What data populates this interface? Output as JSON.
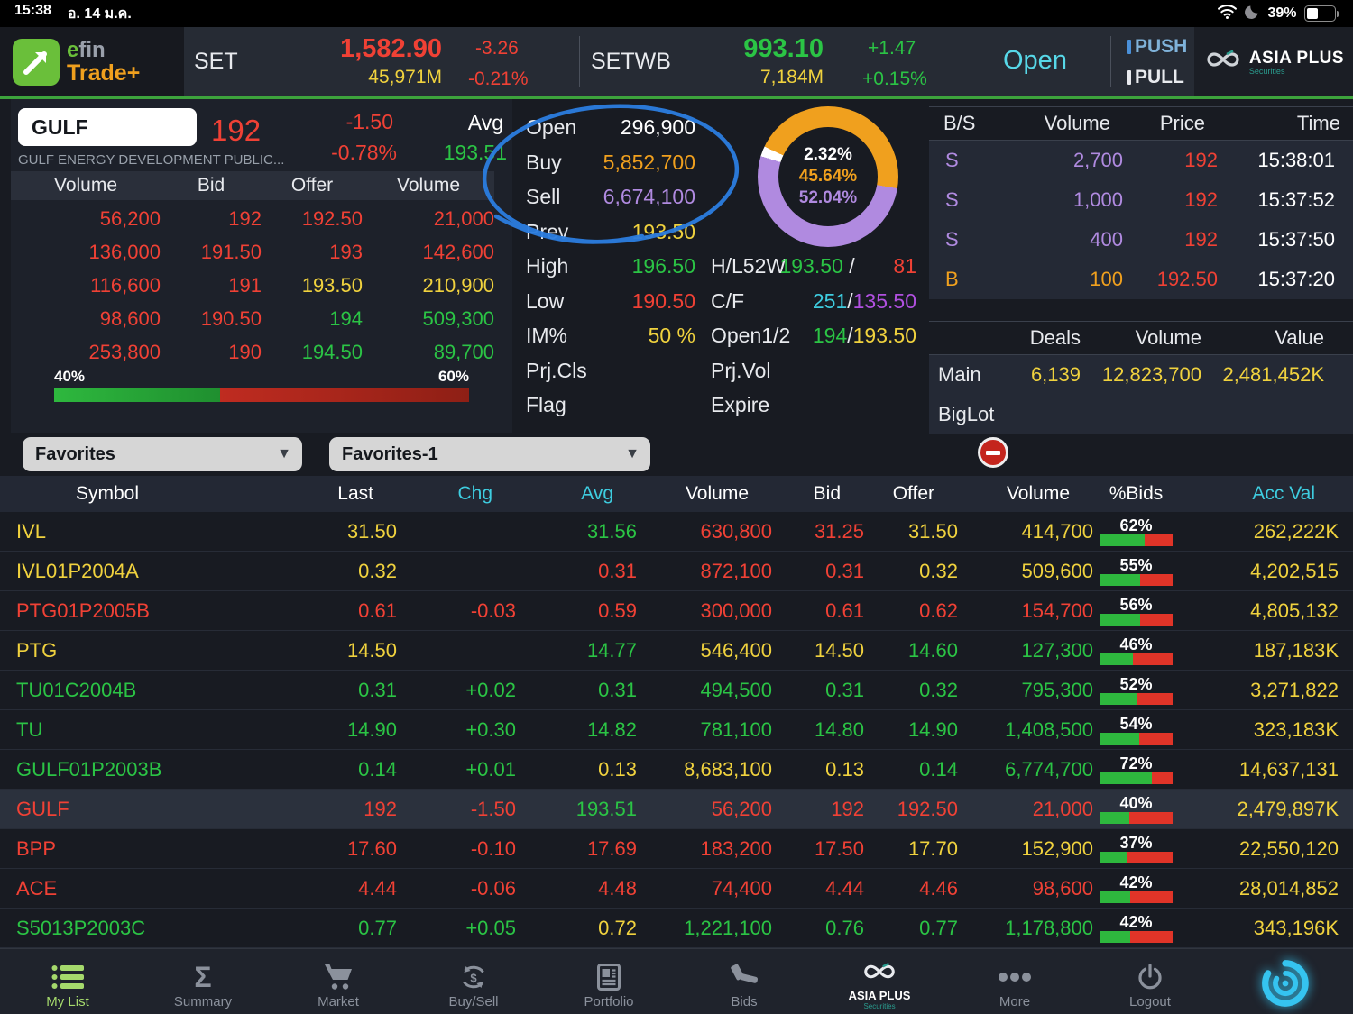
{
  "status_bar": {
    "time": "15:38",
    "date": "อ. 14 ม.ค.",
    "battery_pct": "39%",
    "battery_level": 39
  },
  "header": {
    "logo_efin_e": "e",
    "logo_efin_fin": "fin",
    "logo_trade": "Trade+",
    "set": {
      "label": "SET",
      "value": "1,582.90",
      "change": "-3.26",
      "volume": "45,971M",
      "change_pct": "-0.21%"
    },
    "setwb": {
      "label": "SETWB",
      "value": "993.10",
      "change": "+1.47",
      "volume": "7,184M",
      "change_pct": "+0.15%"
    },
    "market_status": "Open",
    "push_label": "PUSH",
    "pull_label": "PULL",
    "broker_name": "ASIA PLUS",
    "broker_sub": "Securities"
  },
  "quote": {
    "symbol": "GULF",
    "company": "GULF ENERGY DEVELOPMENT PUBLIC...",
    "last": "192",
    "change": "-1.50",
    "change_pct": "-0.78%",
    "avg_label": "Avg",
    "avg": "193.51",
    "book": {
      "headers": [
        "Volume",
        "Bid",
        "Offer",
        "Volume"
      ],
      "rows": [
        {
          "bv": "56,200",
          "bvc": "r",
          "bid": "192",
          "bic": "r",
          "offer": "192.50",
          "ofc": "r",
          "ov": "21,000",
          "ovc": "r"
        },
        {
          "bv": "136,000",
          "bvc": "r",
          "bid": "191.50",
          "bic": "r",
          "offer": "193",
          "ofc": "r",
          "ov": "142,600",
          "ovc": "r"
        },
        {
          "bv": "116,600",
          "bvc": "r",
          "bid": "191",
          "bic": "r",
          "offer": "193.50",
          "ofc": "y",
          "ov": "210,900",
          "ovc": "y"
        },
        {
          "bv": "98,600",
          "bvc": "r",
          "bid": "190.50",
          "bic": "r",
          "offer": "194",
          "ofc": "g",
          "ov": "509,300",
          "ovc": "g"
        },
        {
          "bv": "253,800",
          "bvc": "r",
          "bid": "190",
          "bic": "r",
          "offer": "194.50",
          "ofc": "g",
          "ov": "89,700",
          "ovc": "g"
        }
      ],
      "bid_pct_label": "40%",
      "offer_pct_label": "60%",
      "bid_ratio": 40
    },
    "stats_left": [
      {
        "label": "Open",
        "value": "296,900",
        "c": "w"
      },
      {
        "label": "Buy",
        "value": "5,852,700",
        "c": "o"
      },
      {
        "label": "Sell",
        "value": "6,674,100",
        "c": "p"
      },
      {
        "label": "Prev",
        "value": "193.50",
        "c": "y"
      },
      {
        "label": "High",
        "value": "196.50",
        "c": "g"
      },
      {
        "label": "Low",
        "value": "190.50",
        "c": "r"
      },
      {
        "label": "IM%",
        "value": "50 %",
        "c": "y"
      },
      {
        "label": "Prj.Cls",
        "value": "",
        "c": "w"
      },
      {
        "label": "Flag",
        "value": "",
        "c": "w"
      }
    ],
    "stats_right": [
      {
        "label": "H/L52W",
        "v1": "193.50",
        "c1": "g",
        "sep": " / ",
        "v2": "81",
        "c2": "r"
      },
      {
        "label": "C/F",
        "v1": "251",
        "c1": "c",
        "sep": "/",
        "v2": "135.50",
        "c2": "m"
      },
      {
        "label": "Open1/2",
        "v1": "194",
        "c1": "g",
        "sep": "/",
        "v2": "193.50",
        "c2": "y"
      },
      {
        "label": "Prj.Vol",
        "v1": "",
        "c1": "w",
        "sep": "",
        "v2": "",
        "c2": "w"
      },
      {
        "label": "Expire",
        "v1": "",
        "c1": "w",
        "sep": "",
        "v2": "",
        "c2": "w"
      }
    ],
    "donut": {
      "start_deg": 287,
      "segments": [
        {
          "pct": 2.32,
          "color": "#ffffff"
        },
        {
          "pct": 45.64,
          "color": "#f0a01e"
        },
        {
          "pct": 52.04,
          "color": "#b08ae0"
        }
      ],
      "labels": [
        {
          "text": "2.32%",
          "c": "w"
        },
        {
          "text": "45.64%",
          "c": "o"
        },
        {
          "text": "52.04%",
          "c": "p"
        }
      ]
    },
    "trades": {
      "headers": [
        "B/S",
        "Volume",
        "Price",
        "Time"
      ],
      "rows": [
        {
          "side": "S",
          "sc": "p",
          "volume": "2,700",
          "vc": "p",
          "price": "192",
          "pc": "r",
          "time": "15:38:01"
        },
        {
          "side": "S",
          "sc": "p",
          "volume": "1,000",
          "vc": "p",
          "price": "192",
          "pc": "r",
          "time": "15:37:52"
        },
        {
          "side": "S",
          "sc": "p",
          "volume": "400",
          "vc": "p",
          "price": "192",
          "pc": "r",
          "time": "15:37:50"
        },
        {
          "side": "B",
          "sc": "o",
          "volume": "100",
          "vc": "o",
          "price": "192.50",
          "pc": "r",
          "time": "15:37:20"
        }
      ]
    },
    "deals": {
      "headers": [
        "Deals",
        "Volume",
        "Value"
      ],
      "rows": [
        {
          "label": "Main",
          "deals": "6,139",
          "volume": "12,823,700",
          "value": "2,481,452K"
        },
        {
          "label": "BigLot",
          "deals": "",
          "volume": "",
          "value": ""
        }
      ]
    }
  },
  "favorites": {
    "group": "Favorites",
    "list": "Favorites-1"
  },
  "watchlist": {
    "headers": [
      {
        "label": "Symbol",
        "c": "w",
        "kind": "sym"
      },
      {
        "label": "Last",
        "c": "w",
        "kind": "num"
      },
      {
        "label": "Chg",
        "c": "c",
        "kind": "num"
      },
      {
        "label": "Avg",
        "c": "c",
        "kind": "num"
      },
      {
        "label": "Volume",
        "c": "w",
        "kind": "num"
      },
      {
        "label": "Bid",
        "c": "w",
        "kind": "num"
      },
      {
        "label": "Offer",
        "c": "w",
        "kind": "num"
      },
      {
        "label": "Volume",
        "c": "w",
        "kind": "num"
      },
      {
        "label": "%Bids",
        "c": "w",
        "kind": "mid"
      },
      {
        "label": "Acc Val",
        "c": "c",
        "kind": "num"
      }
    ],
    "rows": [
      {
        "sym": "IVL",
        "syc": "y",
        "last": "31.50",
        "lac": "y",
        "chg": "",
        "chc": "w",
        "avg": "31.56",
        "avc": "g",
        "vol": "630,800",
        "voc": "r",
        "bid": "31.25",
        "bic": "r",
        "off": "31.50",
        "ofc": "y",
        "vol2": "414,700",
        "v2c": "y",
        "pb": 62,
        "pbl": "62%",
        "acc": "262,222K",
        "hl": false
      },
      {
        "sym": "IVL01P2004A",
        "syc": "y",
        "last": "0.32",
        "lac": "y",
        "chg": "",
        "chc": "w",
        "avg": "0.31",
        "avc": "r",
        "vol": "872,100",
        "voc": "r",
        "bid": "0.31",
        "bic": "r",
        "off": "0.32",
        "ofc": "y",
        "vol2": "509,600",
        "v2c": "y",
        "pb": 55,
        "pbl": "55%",
        "acc": "4,202,515",
        "hl": false
      },
      {
        "sym": "PTG01P2005B",
        "syc": "r",
        "last": "0.61",
        "lac": "r",
        "chg": "-0.03",
        "chc": "r",
        "avg": "0.59",
        "avc": "r",
        "vol": "300,000",
        "voc": "r",
        "bid": "0.61",
        "bic": "r",
        "off": "0.62",
        "ofc": "r",
        "vol2": "154,700",
        "v2c": "r",
        "pb": 56,
        "pbl": "56%",
        "acc": "4,805,132",
        "hl": false
      },
      {
        "sym": "PTG",
        "syc": "y",
        "last": "14.50",
        "lac": "y",
        "chg": "",
        "chc": "w",
        "avg": "14.77",
        "avc": "g",
        "vol": "546,400",
        "voc": "y",
        "bid": "14.50",
        "bic": "y",
        "off": "14.60",
        "ofc": "g",
        "vol2": "127,300",
        "v2c": "g",
        "pb": 46,
        "pbl": "46%",
        "acc": "187,183K",
        "hl": false
      },
      {
        "sym": "TU01C2004B",
        "syc": "g",
        "last": "0.31",
        "lac": "g",
        "chg": "+0.02",
        "chc": "g",
        "avg": "0.31",
        "avc": "g",
        "vol": "494,500",
        "voc": "g",
        "bid": "0.31",
        "bic": "g",
        "off": "0.32",
        "ofc": "g",
        "vol2": "795,300",
        "v2c": "g",
        "pb": 52,
        "pbl": "52%",
        "acc": "3,271,822",
        "hl": false
      },
      {
        "sym": "TU",
        "syc": "g",
        "last": "14.90",
        "lac": "g",
        "chg": "+0.30",
        "chc": "g",
        "avg": "14.82",
        "avc": "g",
        "vol": "781,100",
        "voc": "g",
        "bid": "14.80",
        "bic": "g",
        "off": "14.90",
        "ofc": "g",
        "vol2": "1,408,500",
        "v2c": "g",
        "pb": 54,
        "pbl": "54%",
        "acc": "323,183K",
        "hl": false
      },
      {
        "sym": "GULF01P2003B",
        "syc": "g",
        "last": "0.14",
        "lac": "g",
        "chg": "+0.01",
        "chc": "g",
        "avg": "0.13",
        "avc": "y",
        "vol": "8,683,100",
        "voc": "y",
        "bid": "0.13",
        "bic": "y",
        "off": "0.14",
        "ofc": "g",
        "vol2": "6,774,700",
        "v2c": "g",
        "pb": 72,
        "pbl": "72%",
        "acc": "14,637,131",
        "hl": false
      },
      {
        "sym": "GULF",
        "syc": "r",
        "last": "192",
        "lac": "r",
        "chg": "-1.50",
        "chc": "r",
        "avg": "193.51",
        "avc": "g",
        "vol": "56,200",
        "voc": "r",
        "bid": "192",
        "bic": "r",
        "off": "192.50",
        "ofc": "r",
        "vol2": "21,000",
        "v2c": "r",
        "pb": 40,
        "pbl": "40%",
        "acc": "2,479,897K",
        "hl": true
      },
      {
        "sym": "BPP",
        "syc": "r",
        "last": "17.60",
        "lac": "r",
        "chg": "-0.10",
        "chc": "r",
        "avg": "17.69",
        "avc": "r",
        "vol": "183,200",
        "voc": "r",
        "bid": "17.50",
        "bic": "r",
        "off": "17.70",
        "ofc": "y",
        "vol2": "152,900",
        "v2c": "y",
        "pb": 37,
        "pbl": "37%",
        "acc": "22,550,120",
        "hl": false
      },
      {
        "sym": "ACE",
        "syc": "r",
        "last": "4.44",
        "lac": "r",
        "chg": "-0.06",
        "chc": "r",
        "avg": "4.48",
        "avc": "r",
        "vol": "74,400",
        "voc": "r",
        "bid": "4.44",
        "bic": "r",
        "off": "4.46",
        "ofc": "r",
        "vol2": "98,600",
        "v2c": "r",
        "pb": 42,
        "pbl": "42%",
        "acc": "28,014,852",
        "hl": false
      },
      {
        "sym": "S5013P2003C",
        "syc": "g",
        "last": "0.77",
        "lac": "g",
        "chg": "+0.05",
        "chc": "g",
        "avg": "0.72",
        "avc": "y",
        "vol": "1,221,100",
        "voc": "g",
        "bid": "0.76",
        "bic": "g",
        "off": "0.77",
        "ofc": "g",
        "vol2": "1,178,800",
        "v2c": "g",
        "pb": 42,
        "pbl": "42%",
        "acc": "343,196K",
        "hl": false
      }
    ]
  },
  "nav": {
    "items": [
      {
        "label": "My List",
        "icon": "list",
        "state": "active"
      },
      {
        "label": "Summary",
        "icon": "sigma",
        "state": "normal"
      },
      {
        "label": "Market",
        "icon": "cart",
        "state": "normal"
      },
      {
        "label": "Buy/Sell",
        "icon": "buysell",
        "state": "normal"
      },
      {
        "label": "Portfolio",
        "icon": "portfolio",
        "state": "normal"
      },
      {
        "label": "Bids",
        "icon": "gavel",
        "state": "normal"
      },
      {
        "label": "ASIA PLUS",
        "sub": "Securities",
        "icon": "asiaplus",
        "state": "logo"
      },
      {
        "label": "More",
        "icon": "more",
        "state": "normal"
      },
      {
        "label": "Logout",
        "icon": "power",
        "state": "normal"
      },
      {
        "label": "",
        "icon": "swirl",
        "state": "accent"
      }
    ]
  },
  "palette": {
    "red": "#f04135",
    "green": "#2bc445",
    "yellow": "#f0d23e",
    "cyan": "#3ecde0",
    "purple": "#b08ae0",
    "magenta": "#b150e0",
    "orange": "#f0a01e",
    "annotation_blue": "#2b7de0",
    "nav_active": "#a5d96c",
    "market_panel": "#262b34",
    "page_bg": "#181b22",
    "header_green_line": "#3da33c"
  }
}
